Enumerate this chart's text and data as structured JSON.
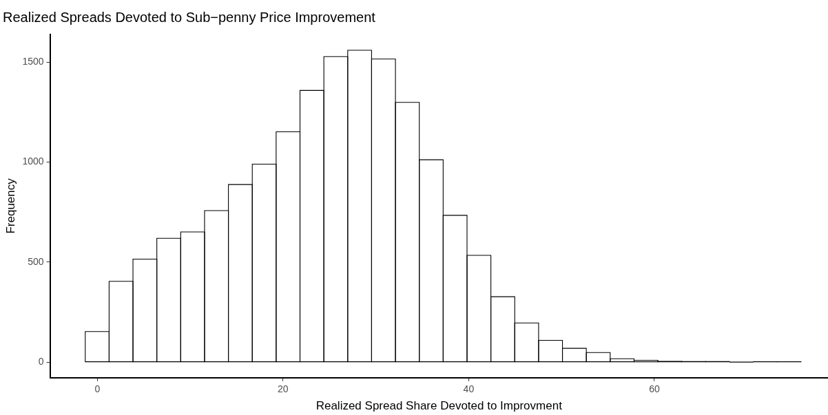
{
  "chart_data": {
    "type": "histogram",
    "title": "Realized Spreads Devoted to Sub−penny Price Improvement",
    "xlabel": "Realized Spread Share Devoted to Improvment",
    "ylabel": "Frequency",
    "bins": [
      -1.3,
      1.27,
      3.84,
      6.41,
      8.98,
      11.55,
      14.12,
      16.69,
      19.26,
      21.83,
      24.4,
      26.97,
      29.54,
      32.11,
      34.68,
      37.25,
      39.82,
      42.39,
      44.96,
      47.53,
      50.1,
      52.67,
      55.24,
      57.81,
      60.38,
      62.95,
      65.52,
      68.09,
      70.66,
      73.23,
      75.8
    ],
    "values": [
      153,
      404,
      515,
      619,
      651,
      758,
      888,
      990,
      1152,
      1359,
      1528,
      1560,
      1516,
      1299,
      1012,
      734,
      534,
      327,
      196,
      109,
      69,
      48,
      17,
      9,
      4,
      3,
      3,
      0,
      2,
      2
    ],
    "color": "#ffffff",
    "xlim": [
      -5.1,
      78.7
    ],
    "xticks": [
      0,
      20,
      40,
      60
    ],
    "ylim": [
      -78,
      1639
    ],
    "yticks": [
      0,
      500,
      1000,
      1500
    ],
    "grid": false,
    "legend": false
  }
}
